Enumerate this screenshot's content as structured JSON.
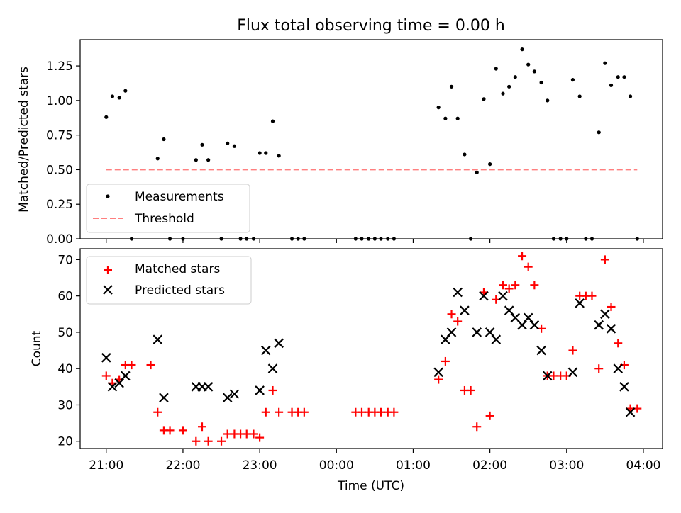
{
  "title": "Flux total observing time = 0.00 h",
  "xlabel": "Time (UTC)",
  "x_ticks": [
    {
      "value": 21.0,
      "label": "21:00"
    },
    {
      "value": 22.0,
      "label": "22:00"
    },
    {
      "value": 23.0,
      "label": "23:00"
    },
    {
      "value": 24.0,
      "label": "00:00"
    },
    {
      "value": 25.0,
      "label": "01:00"
    },
    {
      "value": 26.0,
      "label": "02:00"
    },
    {
      "value": 27.0,
      "label": "03:00"
    },
    {
      "value": 28.0,
      "label": "04:00"
    }
  ],
  "colors": {
    "measurement": "#000000",
    "threshold": "#ff7f7f",
    "matched": "#ff0000",
    "predicted": "#000000"
  },
  "chart_data": [
    {
      "type": "scatter",
      "ylabel": "Matched/Predicted stars",
      "xlim": [
        20.66,
        28.25
      ],
      "ylim": [
        0.0,
        1.44
      ],
      "y_ticks": [
        "0.00",
        "0.25",
        "0.50",
        "0.75",
        "1.00",
        "1.25"
      ],
      "legend": "lower-left",
      "series": [
        {
          "name": "Measurements",
          "marker": "dot",
          "x": [
            21.0,
            21.08,
            21.17,
            21.25,
            21.33,
            21.67,
            21.75,
            21.83,
            22.0,
            22.17,
            22.25,
            22.33,
            22.5,
            22.58,
            22.67,
            22.75,
            22.83,
            22.92,
            23.0,
            23.08,
            23.17,
            23.25,
            23.42,
            23.5,
            23.58,
            24.25,
            24.33,
            24.42,
            24.5,
            24.58,
            24.67,
            24.75,
            25.33,
            25.42,
            25.5,
            25.58,
            25.67,
            25.75,
            25.83,
            25.92,
            26.0,
            26.08,
            26.17,
            26.25,
            26.33,
            26.42,
            26.5,
            26.58,
            26.67,
            26.75,
            26.83,
            26.92,
            27.0,
            27.08,
            27.17,
            27.25,
            27.33,
            27.42,
            27.5,
            27.58,
            27.67,
            27.75,
            27.83,
            27.92
          ],
          "y": [
            0.88,
            1.03,
            1.02,
            1.07,
            0.0,
            0.58,
            0.72,
            0.0,
            0.0,
            0.57,
            0.68,
            0.57,
            0.0,
            0.69,
            0.67,
            0.0,
            0.0,
            0.0,
            0.62,
            0.62,
            0.85,
            0.6,
            0.0,
            0.0,
            0.0,
            0.0,
            0.0,
            0.0,
            0.0,
            0.0,
            0.0,
            0.0,
            0.95,
            0.87,
            1.1,
            0.87,
            0.61,
            0.0,
            0.48,
            1.01,
            0.54,
            1.23,
            1.05,
            1.1,
            1.17,
            1.37,
            1.26,
            1.21,
            1.13,
            1.0,
            0.0,
            0.0,
            0.0,
            1.15,
            1.03,
            0.0,
            0.0,
            0.77,
            1.27,
            1.11,
            1.17,
            1.17,
            1.03,
            0.0
          ]
        },
        {
          "name": "Threshold",
          "style": "dashed",
          "x": [
            21.0,
            27.92
          ],
          "y": [
            0.5,
            0.5
          ]
        }
      ]
    },
    {
      "type": "scatter",
      "ylabel": "Count",
      "xlim": [
        20.66,
        28.25
      ],
      "ylim": [
        18,
        73
      ],
      "y_ticks": [
        "20",
        "30",
        "40",
        "50",
        "60",
        "70"
      ],
      "legend": "top-left",
      "series": [
        {
          "name": "Matched stars",
          "marker": "plus",
          "x": [
            21.0,
            21.08,
            21.17,
            21.25,
            21.33,
            21.58,
            21.67,
            21.75,
            21.83,
            22.0,
            22.17,
            22.25,
            22.33,
            22.5,
            22.58,
            22.67,
            22.75,
            22.83,
            22.92,
            23.0,
            23.08,
            23.17,
            23.25,
            23.42,
            23.5,
            23.58,
            24.25,
            24.33,
            24.42,
            24.5,
            24.58,
            24.67,
            24.75,
            25.33,
            25.42,
            25.5,
            25.58,
            25.67,
            25.75,
            25.83,
            25.92,
            26.0,
            26.08,
            26.17,
            26.25,
            26.33,
            26.42,
            26.5,
            26.58,
            26.67,
            26.75,
            26.83,
            26.92,
            27.0,
            27.08,
            27.17,
            27.25,
            27.33,
            27.42,
            27.5,
            27.58,
            27.67,
            27.75,
            27.83,
            27.92
          ],
          "y": [
            38,
            36,
            37,
            41,
            41,
            41,
            28,
            23,
            23,
            23,
            20,
            24,
            20,
            20,
            22,
            22,
            22,
            22,
            22,
            21,
            28,
            34,
            28,
            28,
            28,
            28,
            28,
            28,
            28,
            28,
            28,
            28,
            28,
            37,
            42,
            55,
            53,
            34,
            34,
            24,
            61,
            27,
            59,
            63,
            62,
            63,
            71,
            68,
            63,
            51,
            38,
            38,
            38,
            38,
            45,
            60,
            60,
            60,
            40,
            70,
            57,
            47,
            41,
            29,
            29
          ]
        },
        {
          "name": "Predicted stars",
          "marker": "x",
          "x": [
            21.0,
            21.08,
            21.17,
            21.25,
            21.67,
            21.75,
            22.17,
            22.25,
            22.33,
            22.58,
            22.67,
            23.0,
            23.08,
            23.17,
            23.25,
            25.33,
            25.42,
            25.5,
            25.58,
            25.67,
            25.83,
            25.92,
            26.0,
            26.08,
            26.17,
            26.25,
            26.33,
            26.42,
            26.5,
            26.58,
            26.67,
            26.75,
            27.08,
            27.17,
            27.42,
            27.5,
            27.58,
            27.67,
            27.75,
            27.83
          ],
          "y": [
            43,
            35,
            36,
            38,
            48,
            32,
            35,
            35,
            35,
            32,
            33,
            34,
            45,
            40,
            47,
            39,
            48,
            50,
            61,
            56,
            50,
            60,
            50,
            48,
            60,
            56,
            54,
            52,
            54,
            52,
            45,
            38,
            39,
            58,
            52,
            55,
            51,
            40,
            35,
            28
          ]
        }
      ]
    }
  ]
}
